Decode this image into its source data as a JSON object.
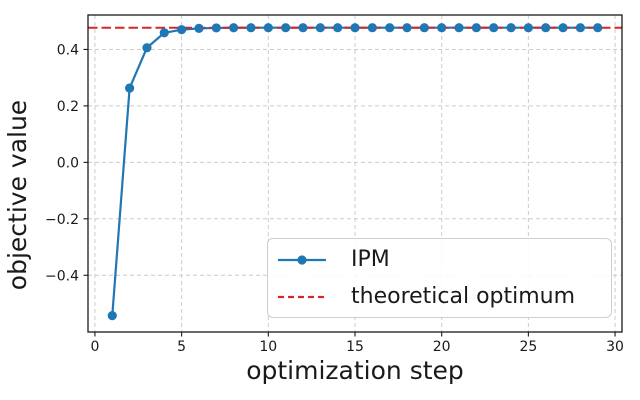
{
  "chart_data": {
    "type": "line",
    "title": "",
    "xlabel": "optimization step",
    "ylabel": "objective value",
    "xlim": [
      -0.4,
      30.4
    ],
    "ylim": [
      -0.601,
      0.522
    ],
    "x_ticks": [
      0,
      5,
      10,
      15,
      20,
      25,
      30
    ],
    "x_tick_labels": [
      "0",
      "5",
      "10",
      "15",
      "20",
      "25",
      "30"
    ],
    "y_ticks": [
      0.4,
      0.2,
      0.0,
      -0.2,
      -0.4
    ],
    "y_tick_labels": [
      "0.4",
      "0.2",
      "0.0",
      "−0.2",
      "−0.4"
    ],
    "grid": true,
    "grid_style": "dashed",
    "legend": {
      "position": "inside lower-right",
      "entries": [
        "IPM",
        "theoretical optimum"
      ]
    },
    "series": [
      {
        "name": "IPM",
        "type": "line",
        "color": "#1f77b4",
        "line_style": "solid",
        "marker": "circle",
        "x": [
          1,
          2,
          3,
          4,
          5,
          6,
          7,
          8,
          9,
          10,
          11,
          12,
          13,
          14,
          15,
          16,
          17,
          18,
          19,
          20,
          21,
          22,
          23,
          24,
          25,
          26,
          27,
          28,
          29
        ],
        "y": [
          -0.543,
          0.263,
          0.406,
          0.459,
          0.47,
          0.4745,
          0.4762,
          0.4768,
          0.477,
          0.477,
          0.477,
          0.477,
          0.477,
          0.477,
          0.477,
          0.477,
          0.477,
          0.477,
          0.477,
          0.477,
          0.477,
          0.477,
          0.477,
          0.477,
          0.477,
          0.477,
          0.477,
          0.477,
          0.477
        ]
      },
      {
        "name": "theoretical optimum",
        "type": "hline",
        "color": "#d62728",
        "line_style": "dashed",
        "y": 0.477
      }
    ]
  },
  "colors": {
    "frame": "#1a1a1a",
    "grid": "#cccccc",
    "background": "#ffffff"
  }
}
